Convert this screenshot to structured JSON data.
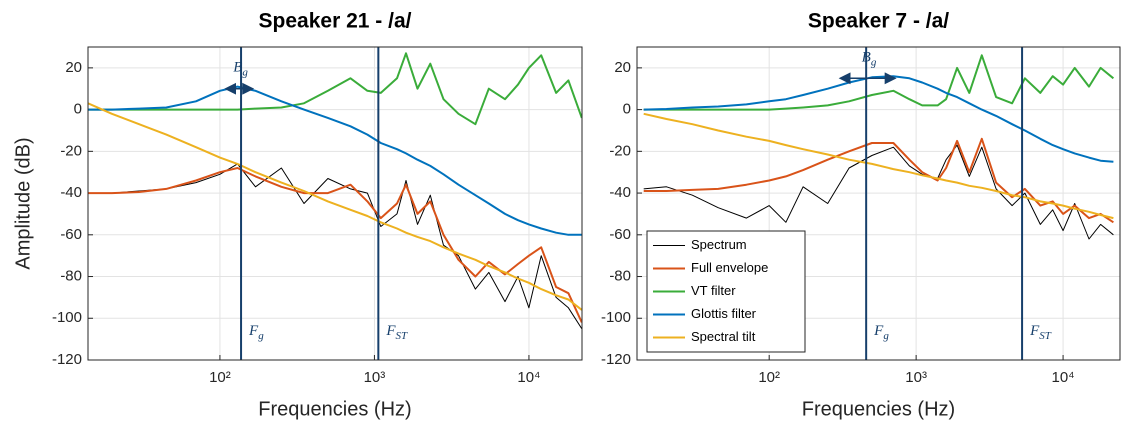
{
  "chart_data": [
    {
      "type": "line",
      "title": "Speaker 21 - /a/",
      "xlabel": "Frequencies (Hz)",
      "ylabel": "Amplitude (dB)",
      "log_x": true,
      "grid": true,
      "xlim": [
        14,
        22050
      ],
      "ylim": [
        -120,
        30
      ],
      "xticks": [
        {
          "value": 100,
          "label": "10²"
        },
        {
          "value": 1000,
          "label": "10³"
        },
        {
          "value": 10000,
          "label": "10⁴"
        }
      ],
      "yticks": [
        -120,
        -100,
        -80,
        -60,
        -40,
        -20,
        0,
        20
      ],
      "x": [
        14,
        20,
        30,
        45,
        70,
        100,
        130,
        170,
        250,
        350,
        500,
        700,
        900,
        1100,
        1400,
        1600,
        1900,
        2300,
        2800,
        3500,
        4500,
        5500,
        7000,
        8500,
        10000,
        12000,
        15000,
        18000,
        22000
      ],
      "series": [
        {
          "color": "#000000",
          "values": [
            -40,
            -40,
            -39,
            -38,
            -35,
            -31,
            -26,
            -37,
            -28,
            -45,
            -33,
            -38,
            -40,
            -56,
            -50,
            -34,
            -55,
            -41,
            -65,
            -70,
            -86,
            -78,
            -92,
            -80,
            -95,
            -70,
            -90,
            -95,
            -105
          ]
        },
        {
          "color": "#d95319",
          "values": [
            -40,
            -40,
            -39.5,
            -38,
            -34,
            -30,
            -28,
            -32,
            -37,
            -40,
            -40,
            -36,
            -44,
            -52,
            -45,
            -36,
            -50,
            -44,
            -60,
            -72,
            -80,
            -73,
            -79,
            -74,
            -70,
            -66,
            -85,
            -88,
            -102
          ]
        },
        {
          "color": "#3aac3a",
          "values": [
            0,
            0,
            0,
            0,
            0,
            0,
            0,
            0.5,
            1,
            3,
            9,
            15,
            9,
            8,
            15,
            27,
            10,
            22,
            5,
            -2,
            -7,
            10,
            5,
            12,
            20,
            26,
            8,
            14,
            -4
          ]
        },
        {
          "color": "#0072bd",
          "values": [
            0,
            0,
            0.5,
            1,
            4,
            9,
            11,
            9,
            4,
            0,
            -4,
            -8,
            -12,
            -16,
            -19,
            -21,
            -24,
            -27,
            -31,
            -36,
            -41,
            -45,
            -50,
            -53,
            -55,
            -57,
            -59,
            -60,
            -60
          ]
        },
        {
          "color": "#edb120",
          "values": [
            3,
            -2,
            -7,
            -12,
            -18,
            -23,
            -26,
            -30,
            -35,
            -39,
            -44,
            -48,
            -51,
            -54,
            -57,
            -59,
            -61,
            -63,
            -66,
            -69,
            -72,
            -75,
            -78,
            -81,
            -83,
            -86,
            -89,
            -91,
            -96
          ]
        }
      ],
      "vlines": [
        {
          "x": 137,
          "color": "#163f6b",
          "label": {
            "text": "F",
            "sub": "g"
          }
        },
        {
          "x": 1060,
          "color": "#163f6b",
          "label": {
            "text": "F",
            "sub": "ST"
          }
        }
      ],
      "arrows": [
        {
          "x": [
            109,
            163
          ],
          "y": 10,
          "color": "#163f6b",
          "label": {
            "text": "B",
            "sub": "g"
          }
        }
      ]
    },
    {
      "type": "line",
      "title": "Speaker 7 - /a/",
      "xlabel": "Frequencies (Hz)",
      "log_x": true,
      "grid": true,
      "xlim": [
        12.6,
        24400
      ],
      "ylim": [
        -120,
        30
      ],
      "legend": "lower left",
      "xticks": [
        {
          "value": 100,
          "label": "10²"
        },
        {
          "value": 1000,
          "label": "10³"
        },
        {
          "value": 10000,
          "label": "10⁴"
        }
      ],
      "yticks": [
        -120,
        -100,
        -80,
        -60,
        -40,
        -20,
        0,
        20
      ],
      "x": [
        14,
        20,
        30,
        45,
        70,
        100,
        130,
        170,
        250,
        350,
        500,
        700,
        900,
        1100,
        1400,
        1600,
        1900,
        2300,
        2800,
        3500,
        4500,
        5500,
        7000,
        8500,
        10000,
        12000,
        15000,
        18000,
        22000
      ],
      "series": [
        {
          "name": "Spectrum",
          "color": "#000000",
          "values": [
            -38,
            -37,
            -41,
            -47,
            -52,
            -46,
            -54,
            -37,
            -45,
            -28,
            -22,
            -18,
            -27,
            -31,
            -33,
            -24,
            -17,
            -32,
            -18,
            -38,
            -46,
            -40,
            -55,
            -48,
            -58,
            -45,
            -62,
            -55,
            -60
          ]
        },
        {
          "name": "Full envelope",
          "color": "#d95319",
          "values": [
            -39,
            -39,
            -38.5,
            -38,
            -36,
            -34,
            -32,
            -29,
            -24,
            -20,
            -16,
            -16,
            -24,
            -30,
            -34,
            -28,
            -15,
            -30,
            -14,
            -35,
            -42,
            -38,
            -46,
            -44,
            -50,
            -46,
            -52,
            -50,
            -54
          ]
        },
        {
          "name": "VT filter",
          "color": "#3aac3a",
          "values": [
            0,
            0,
            0,
            0,
            0,
            0,
            0.5,
            1,
            2,
            4,
            7,
            9,
            5,
            2,
            2,
            5,
            20,
            8,
            26,
            6,
            3,
            15,
            8,
            16,
            12,
            20,
            11,
            20,
            15
          ]
        },
        {
          "name": "Glottis filter",
          "color": "#0072bd",
          "values": [
            0,
            0.3,
            1,
            1.5,
            2.5,
            4,
            5,
            7,
            10,
            13,
            15.5,
            16,
            15,
            13,
            10,
            8,
            6,
            3,
            0,
            -3,
            -7,
            -10,
            -14,
            -17,
            -19,
            -21,
            -23,
            -24.5,
            -25
          ]
        },
        {
          "name": "Spectral tilt",
          "color": "#edb120",
          "values": [
            -2,
            -4.5,
            -7,
            -10,
            -13,
            -15,
            -17,
            -19,
            -21.5,
            -24,
            -26,
            -28.5,
            -30,
            -31.5,
            -33,
            -34,
            -35,
            -36.5,
            -37.5,
            -39,
            -41,
            -42,
            -44,
            -45,
            -46,
            -47.5,
            -49,
            -50.5,
            -52
          ]
        }
      ],
      "vlines": [
        {
          "x": 457,
          "color": "#163f6b",
          "label": {
            "text": "F",
            "sub": "g"
          }
        },
        {
          "x": 5260,
          "color": "#163f6b",
          "label": {
            "text": "F",
            "sub": "ST"
          }
        }
      ],
      "arrows": [
        {
          "x": [
            304,
            720
          ],
          "y": 15,
          "color": "#163f6b",
          "label": {
            "text": "B",
            "sub": "g"
          }
        }
      ]
    }
  ]
}
